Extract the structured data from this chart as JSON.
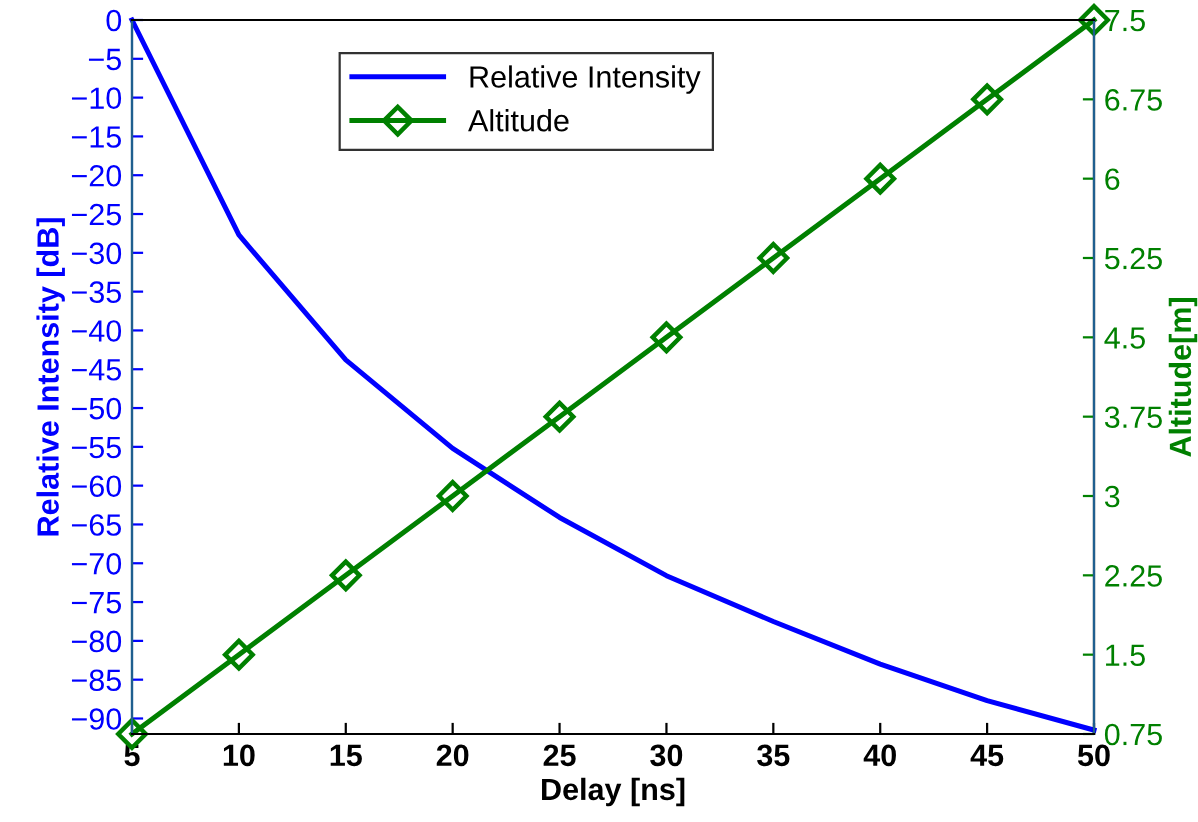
{
  "chart_data": {
    "type": "line",
    "xlabel": "Delay [ns]",
    "ylabel": "Relative Intensity [dB]",
    "y2label": "Altitude[m]",
    "x": [
      5,
      10,
      15,
      20,
      25,
      30,
      35,
      40,
      45,
      50
    ],
    "series": [
      {
        "name": "Relative Intensity",
        "color": "#0000ff",
        "marker": "none",
        "values": [
          0,
          -27.7,
          -43.8,
          -55.2,
          -64.1,
          -71.6,
          -77.5,
          -83,
          -87.7,
          -91.5
        ]
      },
      {
        "name": "Altitude",
        "color": "#008000",
        "marker": "diamond",
        "axis": "y2",
        "values": [
          0.75,
          1.5,
          2.25,
          3,
          3.75,
          4.5,
          5.25,
          6,
          6.75,
          7.5
        ]
      }
    ],
    "xlim": [
      5,
      50
    ],
    "xticks": [
      5,
      10,
      15,
      20,
      25,
      30,
      35,
      40,
      45,
      50
    ],
    "ylim": [
      -92,
      0
    ],
    "yticks": [
      0,
      -5,
      -10,
      -15,
      -20,
      -25,
      -30,
      -35,
      -40,
      -45,
      -50,
      -55,
      -60,
      -65,
      -70,
      -75,
      -80,
      -85,
      -90
    ],
    "y2lim": [
      0.75,
      7.5
    ],
    "y2ticks": [
      0.75,
      1.5,
      2.25,
      3,
      3.75,
      4.5,
      5.25,
      6,
      6.75,
      7.5
    ],
    "grid": false,
    "legend": "top"
  }
}
